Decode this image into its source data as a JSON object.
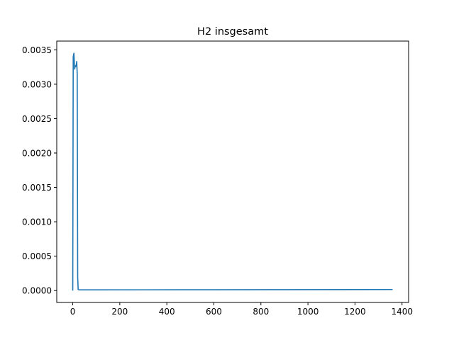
{
  "chart_data": {
    "type": "line",
    "title": "H2 insgesamt",
    "xlabel": "",
    "ylabel": "",
    "xlim": [
      -68,
      1428
    ],
    "ylim": [
      -0.000173,
      0.003627
    ],
    "xticks": [
      0,
      200,
      400,
      600,
      800,
      1000,
      1200,
      1400
    ],
    "xtick_labels": [
      "0",
      "200",
      "400",
      "600",
      "800",
      "1000",
      "1200",
      "1400"
    ],
    "yticks": [
      0.0,
      0.0005,
      0.001,
      0.0015,
      0.002,
      0.0025,
      0.003,
      0.0035
    ],
    "ytick_labels": [
      "0.0000",
      "0.0005",
      "0.0010",
      "0.0015",
      "0.0020",
      "0.0025",
      "0.0030",
      "0.0035"
    ],
    "grid": false,
    "series": [
      {
        "color": "#1f77b4",
        "x": [
          0,
          2,
          5,
          8,
          11,
          14,
          17,
          19,
          21,
          23,
          25,
          30,
          50,
          100,
          300,
          600,
          900,
          1200,
          1360
        ],
        "y": [
          0.0,
          0.0034,
          0.00345,
          0.00322,
          0.00327,
          0.00326,
          0.00333,
          0.00315,
          0.0002,
          1.5e-05,
          1.2e-05,
          1e-05,
          1e-05,
          1e-05,
          1.1e-05,
          1.2e-05,
          1.3e-05,
          1.4e-05,
          1.5e-05
        ]
      }
    ]
  }
}
